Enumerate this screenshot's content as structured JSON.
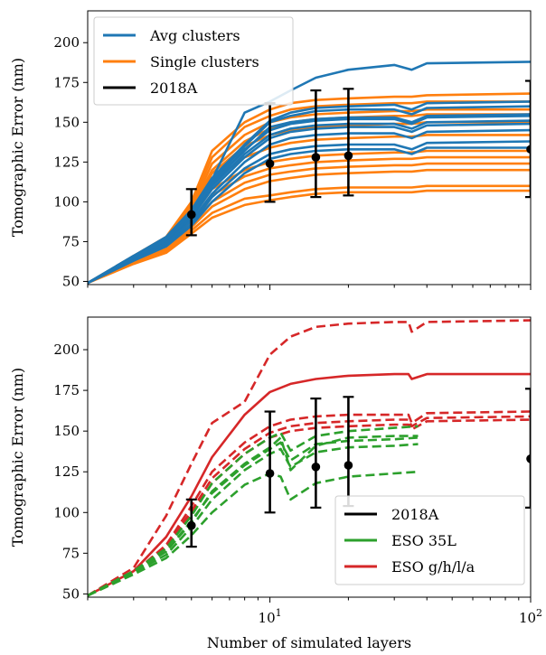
{
  "figure": {
    "xlabel": "Number of simulated layers"
  },
  "colors": {
    "avg": "#1f77b4",
    "single": "#ff7f0e",
    "obs": "#000000",
    "eso35": "#2ca02c",
    "esogh": "#d62728"
  },
  "chart_data": [
    {
      "type": "line",
      "ylabel": "Tomographic Error (nm)",
      "xscale": "log",
      "xlim": [
        2,
        100
      ],
      "ylim": [
        48,
        220
      ],
      "yticks": [
        50,
        75,
        100,
        125,
        150,
        175,
        200
      ],
      "legend_position": "top-left",
      "legend": [
        "Avg clusters",
        "Single clusters",
        "2018A"
      ],
      "x": [
        2,
        3,
        4,
        5,
        6,
        8,
        10,
        12,
        15,
        20,
        30,
        35,
        40,
        100
      ],
      "series_groups": [
        {
          "label": "Avg clusters",
          "color": "#1f77b4",
          "series": [
            {
              "values": [
                49,
                65,
                76,
                92,
                112,
                132,
                147,
                150,
                152,
                153,
                153,
                150,
                154,
                155
              ]
            },
            {
              "values": [
                49,
                66,
                77,
                93,
                113,
                135,
                150,
                154,
                157,
                158,
                158,
                155,
                159,
                160
              ]
            },
            {
              "values": [
                49,
                66,
                78,
                95,
                115,
                136,
                151,
                156,
                159,
                160,
                161,
                158,
                162,
                163
              ]
            },
            {
              "values": [
                49,
                65,
                75,
                90,
                108,
                128,
                140,
                144,
                146,
                147,
                147,
                144,
                148,
                149
              ]
            },
            {
              "values": [
                49,
                64,
                74,
                88,
                105,
                125,
                136,
                140,
                142,
                143,
                143,
                140,
                144,
                145
              ]
            },
            {
              "values": [
                49,
                65,
                76,
                91,
                110,
                130,
                142,
                146,
                148,
                149,
                149,
                146,
                150,
                151
              ]
            },
            {
              "values": [
                49,
                64,
                73,
                86,
                103,
                121,
                130,
                133,
                135,
                136,
                136,
                133,
                137,
                138
              ]
            },
            {
              "values": [
                49,
                63,
                72,
                85,
                100,
                118,
                127,
                130,
                132,
                133,
                133,
                130,
                134,
                134
              ]
            },
            {
              "values": [
                49,
                66,
                77,
                94,
                114,
                156,
                163,
                170,
                178,
                183,
                186,
                183,
                187,
                188
              ]
            },
            {
              "values": [
                49,
                65,
                76,
                92,
                111,
                133,
                145,
                149,
                151,
                152,
                152,
                149,
                153,
                154
              ]
            }
          ]
        },
        {
          "label": "Single clusters",
          "color": "#ff7f0e",
          "series": [
            {
              "values": [
                49,
                66,
                78,
                100,
                132,
                150,
                158,
                162,
                164,
                165,
                166,
                166,
                167,
                168
              ]
            },
            {
              "values": [
                49,
                66,
                77,
                98,
                128,
                147,
                154,
                158,
                160,
                161,
                162,
                162,
                163,
                163
              ]
            },
            {
              "values": [
                49,
                65,
                76,
                96,
                124,
                142,
                150,
                153,
                155,
                156,
                157,
                157,
                158,
                158
              ]
            },
            {
              "values": [
                49,
                65,
                75,
                94,
                118,
                135,
                142,
                145,
                147,
                148,
                149,
                149,
                150,
                150
              ]
            },
            {
              "values": [
                49,
                64,
                74,
                92,
                113,
                128,
                134,
                137,
                139,
                140,
                141,
                141,
                142,
                142
              ]
            },
            {
              "values": [
                49,
                64,
                73,
                90,
                108,
                120,
                125,
                127,
                129,
                130,
                131,
                131,
                132,
                132
              ]
            },
            {
              "values": [
                49,
                63,
                72,
                88,
                104,
                116,
                121,
                123,
                125,
                126,
                127,
                127,
                128,
                128
              ]
            },
            {
              "values": [
                49,
                63,
                71,
                86,
                100,
                112,
                117,
                119,
                121,
                122,
                123,
                123,
                124,
                124
              ]
            },
            {
              "values": [
                49,
                62,
                70,
                84,
                97,
                108,
                113,
                115,
                117,
                118,
                119,
                119,
                120,
                120
              ]
            },
            {
              "values": [
                49,
                62,
                69,
                82,
                93,
                102,
                104,
                106,
                108,
                109,
                109,
                109,
                110,
                110
              ]
            },
            {
              "values": [
                49,
                61,
                68,
                80,
                90,
                98,
                101,
                103,
                105,
                106,
                106,
                106,
                107,
                107
              ]
            },
            {
              "values": [
                49,
                65,
                76,
                95,
                120,
                138,
                146,
                150,
                152,
                153,
                154,
                154,
                155,
                155
              ]
            }
          ]
        }
      ],
      "observations": {
        "label": "2018A",
        "color": "#000000",
        "points": [
          {
            "x": 5,
            "y": 92,
            "lo": 79,
            "hi": 108
          },
          {
            "x": 10,
            "y": 124,
            "lo": 100,
            "hi": 162
          },
          {
            "x": 15,
            "y": 128,
            "lo": 103,
            "hi": 170
          },
          {
            "x": 20,
            "y": 129,
            "lo": 104,
            "hi": 171
          },
          {
            "x": 100,
            "y": 133,
            "lo": 103,
            "hi": 176
          }
        ]
      }
    },
    {
      "type": "line",
      "xlabel": "Number of simulated layers",
      "ylabel": "Tomographic Error (nm)",
      "xscale": "log",
      "xlim": [
        2,
        100
      ],
      "ylim": [
        48,
        220
      ],
      "yticks": [
        50,
        75,
        100,
        125,
        150,
        175,
        200
      ],
      "xticks": [
        10,
        100
      ],
      "xticklabels": [
        [
          "10",
          "1"
        ],
        [
          "10",
          "2"
        ]
      ],
      "legend_position": "bottom-right",
      "legend": [
        "2018A",
        "ESO 35L",
        "ESO g/h/l/a"
      ],
      "series": [
        {
          "name": "ESO g/h/l/a",
          "group": "esogh",
          "style": "solid",
          "x": [
            2,
            3,
            4,
            5,
            6,
            8,
            10,
            12,
            15,
            20,
            30,
            34,
            35,
            40,
            100
          ],
          "y": [
            49,
            64,
            85,
            110,
            134,
            160,
            174,
            179,
            182,
            184,
            185,
            185,
            182,
            185,
            185
          ]
        },
        {
          "name": "",
          "group": "esogh",
          "style": "dashed",
          "x": [
            2,
            3,
            4,
            5,
            6,
            8,
            10,
            12,
            15,
            20,
            30,
            34,
            35,
            40,
            100
          ],
          "y": [
            49,
            66,
            98,
            130,
            155,
            168,
            197,
            208,
            214,
            216,
            217,
            217,
            211,
            217,
            218
          ]
        },
        {
          "name": "",
          "group": "esogh",
          "style": "dashed",
          "x": [
            2,
            3,
            4,
            5,
            6,
            8,
            10,
            12,
            15,
            20,
            30,
            34,
            35,
            40,
            100
          ],
          "y": [
            49,
            63,
            80,
            104,
            125,
            143,
            153,
            157,
            159,
            160,
            160,
            160,
            155,
            161,
            162
          ]
        },
        {
          "name": "",
          "group": "esogh",
          "style": "dashed",
          "x": [
            2,
            3,
            4,
            5,
            6,
            8,
            10,
            12,
            15,
            20,
            30,
            34,
            35,
            40,
            100
          ],
          "y": [
            49,
            63,
            79,
            101,
            121,
            139,
            149,
            153,
            155,
            156,
            157,
            157,
            153,
            158,
            159
          ]
        },
        {
          "name": "",
          "group": "esogh",
          "style": "dashed",
          "x": [
            2,
            3,
            4,
            5,
            6,
            8,
            10,
            12,
            15,
            20,
            30,
            34,
            35,
            40,
            100
          ],
          "y": [
            49,
            63,
            78,
            99,
            118,
            136,
            146,
            150,
            152,
            153,
            154,
            154,
            151,
            156,
            157
          ]
        },
        {
          "name": "ESO 35L",
          "group": "eso35",
          "style": "dashed",
          "x": [
            2,
            3,
            4,
            5,
            6,
            8,
            10,
            11,
            12,
            15,
            20,
            30,
            37
          ],
          "y": [
            49,
            64,
            76,
            95,
            112,
            129,
            139,
            143,
            132,
            142,
            144,
            145,
            146
          ]
        },
        {
          "name": "",
          "group": "eso35",
          "style": "dashed",
          "x": [
            2,
            3,
            4,
            5,
            6,
            8,
            10,
            11,
            12,
            15,
            20,
            30,
            37
          ],
          "y": [
            49,
            64,
            78,
            98,
            118,
            136,
            146,
            149,
            138,
            147,
            150,
            152,
            153
          ]
        },
        {
          "name": "",
          "group": "eso35",
          "style": "dashed",
          "x": [
            2,
            3,
            4,
            5,
            6,
            8,
            10,
            11,
            12,
            15,
            20,
            30,
            37
          ],
          "y": [
            49,
            63,
            74,
            91,
            108,
            126,
            136,
            139,
            128,
            137,
            140,
            141,
            142
          ]
        },
        {
          "name": "",
          "group": "eso35",
          "style": "dashed",
          "x": [
            2,
            3,
            4,
            5,
            6,
            8,
            10,
            11,
            12,
            15,
            20,
            30,
            37
          ],
          "y": [
            49,
            62,
            72,
            86,
            100,
            117,
            124,
            122,
            108,
            118,
            122,
            124,
            125
          ]
        },
        {
          "name": "",
          "group": "eso35",
          "style": "dashed",
          "x": [
            2,
            3,
            4,
            5,
            6,
            8,
            10,
            11,
            12,
            15,
            20,
            30,
            37
          ],
          "y": [
            49,
            64,
            76,
            94,
            113,
            130,
            140,
            146,
            126,
            141,
            146,
            147,
            147
          ]
        }
      ],
      "observations": {
        "label": "2018A",
        "color": "#000000",
        "points": [
          {
            "x": 5,
            "y": 92,
            "lo": 79,
            "hi": 108
          },
          {
            "x": 10,
            "y": 124,
            "lo": 100,
            "hi": 162
          },
          {
            "x": 15,
            "y": 128,
            "lo": 103,
            "hi": 170
          },
          {
            "x": 20,
            "y": 129,
            "lo": 104,
            "hi": 171
          },
          {
            "x": 100,
            "y": 133,
            "lo": 103,
            "hi": 176
          }
        ]
      }
    }
  ]
}
